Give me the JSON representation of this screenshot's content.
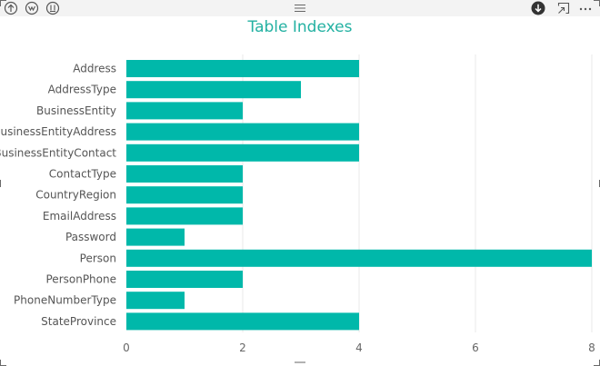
{
  "visual": {
    "title": "Table Indexes",
    "accent_color": "#00b8aa",
    "title_color": "#23b1a2"
  },
  "header": {
    "left_buttons": [
      {
        "icon": "drill-up-icon"
      },
      {
        "icon": "drill-down-mode-icon"
      },
      {
        "icon": "expand-all-down-icon"
      }
    ],
    "grip_icon": "drag-grip-icon",
    "right_buttons": [
      {
        "icon": "drill-down-on-icon"
      },
      {
        "icon": "focus-mode-icon"
      },
      {
        "icon": "more-options-icon"
      }
    ]
  },
  "chart_data": {
    "type": "bar",
    "orientation": "horizontal",
    "title": "Table Indexes",
    "categories": [
      "Address",
      "AddressType",
      "BusinessEntity",
      "BusinessEntityAddress",
      "BusinessEntityContact",
      "ContactType",
      "CountryRegion",
      "EmailAddress",
      "Password",
      "Person",
      "PersonPhone",
      "PhoneNumberType",
      "StateProvince"
    ],
    "values": [
      4,
      3,
      2,
      4,
      4,
      2,
      2,
      2,
      1,
      8,
      2,
      1,
      4
    ],
    "xlim": [
      0,
      8
    ],
    "xticks": [
      "0",
      "2",
      "4",
      "6",
      "8"
    ],
    "grid": true,
    "bar_color": "#00b8aa",
    "xlabel": "",
    "ylabel": ""
  }
}
